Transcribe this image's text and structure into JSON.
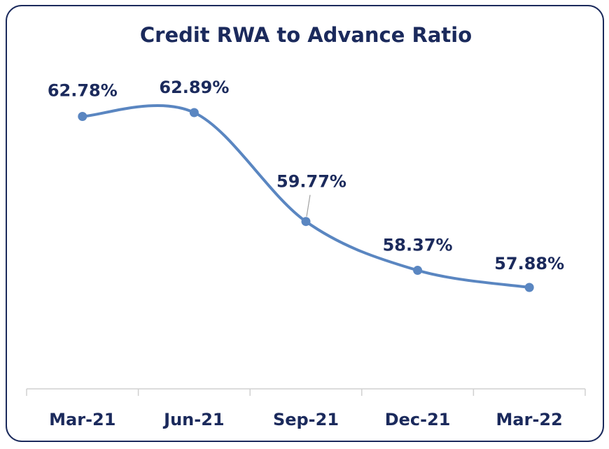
{
  "chart_data": {
    "type": "line",
    "title": "Credit RWA to Advance Ratio",
    "categories": [
      "Mar-21",
      "Jun-21",
      "Sep-21",
      "Dec-21",
      "Mar-22"
    ],
    "series": [
      {
        "name": "Credit RWA to Advance Ratio",
        "color": "#5a86c1",
        "values": [
          62.78,
          62.89,
          59.77,
          58.37,
          57.88
        ],
        "value_labels": [
          "62.78%",
          "62.89%",
          "59.77%",
          "58.37%",
          "57.88%"
        ]
      }
    ],
    "smooth": true,
    "markers": true
  }
}
